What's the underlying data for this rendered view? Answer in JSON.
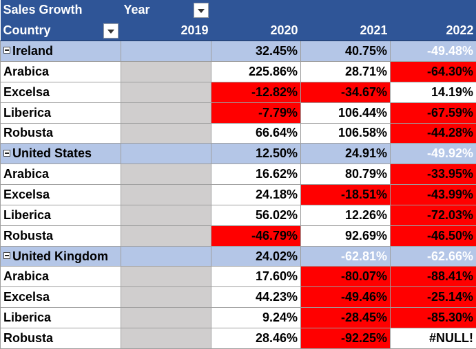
{
  "header": {
    "title": "Sales Growth",
    "column_field": "Year",
    "row_field": "Country",
    "years": [
      "2019",
      "2020",
      "2021",
      "2022"
    ]
  },
  "colors": {
    "header_bg": "#2f5597",
    "group_row_bg": "#b4c6e7",
    "empty_cell_bg": "#d0cece",
    "negative_bg": "#ff0000",
    "highlight_bg": "#000000"
  },
  "rows": [
    {
      "type": "group",
      "label": "Ireland",
      "values": [
        "",
        "32.45%",
        "40.75%",
        "-49.48%"
      ],
      "styles": [
        "",
        "pos",
        "pos",
        "black"
      ]
    },
    {
      "type": "item",
      "label": "Arabica",
      "values": [
        "",
        "225.86%",
        "28.71%",
        "-64.30%"
      ],
      "styles": [
        "",
        "pos",
        "pos",
        "neg"
      ]
    },
    {
      "type": "item",
      "label": "Excelsa",
      "values": [
        "",
        "-12.82%",
        "-34.67%",
        "14.19%"
      ],
      "styles": [
        "",
        "neg",
        "neg",
        "pos"
      ]
    },
    {
      "type": "item",
      "label": "Liberica",
      "values": [
        "",
        "-7.79%",
        "106.44%",
        "-67.59%"
      ],
      "styles": [
        "",
        "neg",
        "pos",
        "neg"
      ]
    },
    {
      "type": "item",
      "label": "Robusta",
      "values": [
        "",
        "66.64%",
        "106.58%",
        "-44.28%"
      ],
      "styles": [
        "",
        "pos",
        "pos",
        "neg"
      ]
    },
    {
      "type": "group",
      "label": "United States",
      "values": [
        "",
        "12.50%",
        "24.91%",
        "-49.92%"
      ],
      "styles": [
        "",
        "pos",
        "pos",
        "black"
      ]
    },
    {
      "type": "item",
      "label": "Arabica",
      "values": [
        "",
        "16.62%",
        "80.79%",
        "-33.95%"
      ],
      "styles": [
        "",
        "pos",
        "pos",
        "neg"
      ]
    },
    {
      "type": "item",
      "label": "Excelsa",
      "values": [
        "",
        "24.18%",
        "-18.51%",
        "-43.99%"
      ],
      "styles": [
        "",
        "pos",
        "neg",
        "neg"
      ]
    },
    {
      "type": "item",
      "label": "Liberica",
      "values": [
        "",
        "56.02%",
        "12.26%",
        "-72.03%"
      ],
      "styles": [
        "",
        "pos",
        "pos",
        "neg"
      ]
    },
    {
      "type": "item",
      "label": "Robusta",
      "values": [
        "",
        "-46.79%",
        "92.69%",
        "-46.50%"
      ],
      "styles": [
        "",
        "neg",
        "pos",
        "neg"
      ]
    },
    {
      "type": "group",
      "label": "United Kingdom",
      "values": [
        "",
        "24.02%",
        "-62.81%",
        "-62.66%"
      ],
      "styles": [
        "",
        "pos",
        "black",
        "black"
      ]
    },
    {
      "type": "item",
      "label": "Arabica",
      "values": [
        "",
        "17.60%",
        "-80.07%",
        "-88.41%"
      ],
      "styles": [
        "",
        "pos",
        "neg",
        "neg"
      ]
    },
    {
      "type": "item",
      "label": "Excelsa",
      "values": [
        "",
        "44.23%",
        "-49.46%",
        "-25.14%"
      ],
      "styles": [
        "",
        "pos",
        "neg",
        "neg"
      ]
    },
    {
      "type": "item",
      "label": "Liberica",
      "values": [
        "",
        "9.24%",
        "-28.45%",
        "-85.30%"
      ],
      "styles": [
        "",
        "pos",
        "neg",
        "neg"
      ]
    },
    {
      "type": "item",
      "label": "Robusta",
      "values": [
        "",
        "28.46%",
        "-92.25%",
        "#NULL!"
      ],
      "styles": [
        "",
        "pos",
        "neg",
        "pos"
      ]
    }
  ]
}
